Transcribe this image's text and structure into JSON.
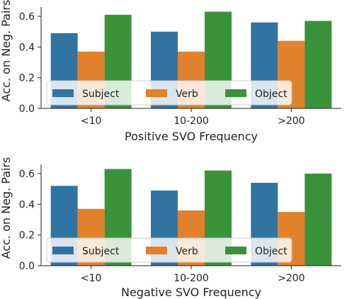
{
  "chart_data": [
    {
      "type": "bar",
      "categories": [
        "<10",
        "10-200",
        ">200"
      ],
      "series": [
        {
          "name": "Subject",
          "values": [
            0.49,
            0.5,
            0.56
          ],
          "color": "#3274a1"
        },
        {
          "name": "Verb",
          "values": [
            0.37,
            0.37,
            0.44
          ],
          "color": "#e1812c"
        },
        {
          "name": "Object",
          "values": [
            0.61,
            0.63,
            0.57
          ],
          "color": "#3a923a"
        }
      ],
      "xlabel": "Positive SVO Frequency",
      "ylabel": "Acc. on Neg. Pairs",
      "ylim": [
        0,
        0.66
      ],
      "yticks": [
        "0.0",
        "0.2",
        "0.4",
        "0.6"
      ],
      "legend_placement": "lower-center",
      "grid": false
    },
    {
      "type": "bar",
      "categories": [
        "<10",
        "10-200",
        ">200"
      ],
      "series": [
        {
          "name": "Subject",
          "values": [
            0.52,
            0.49,
            0.54
          ],
          "color": "#3274a1"
        },
        {
          "name": "Verb",
          "values": [
            0.37,
            0.36,
            0.35
          ],
          "color": "#e1812c"
        },
        {
          "name": "Object",
          "values": [
            0.63,
            0.62,
            0.6
          ],
          "color": "#3a923a"
        }
      ],
      "xlabel": "Negative SVO Frequency",
      "ylabel": "Acc. on Neg. Pairs",
      "ylim": [
        0,
        0.66
      ],
      "yticks": [
        "0.0",
        "0.2",
        "0.4",
        "0.6"
      ],
      "legend_placement": "lower-center",
      "grid": false
    }
  ]
}
